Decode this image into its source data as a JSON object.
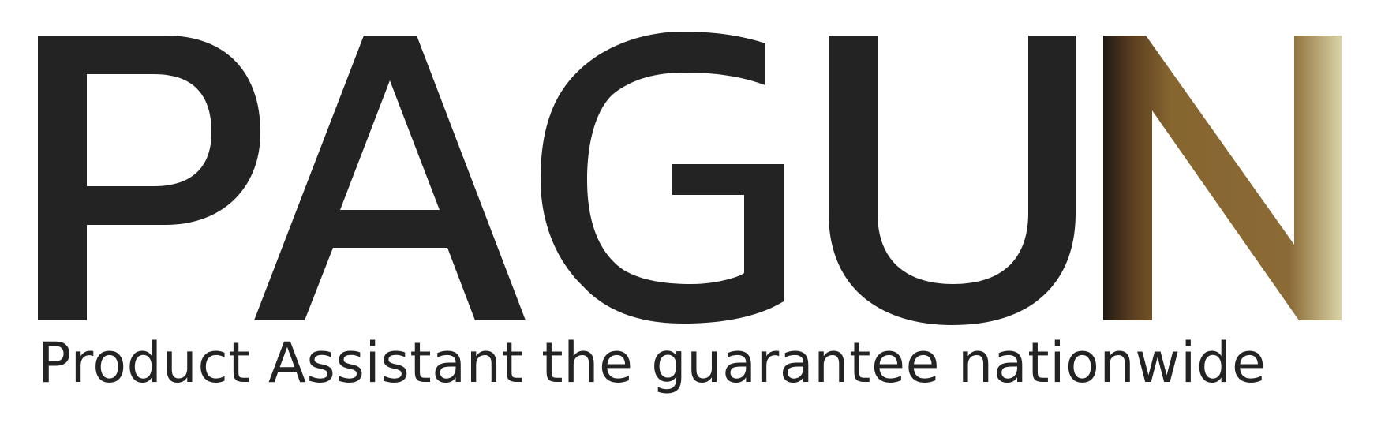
{
  "logo": {
    "wordmark": "PAGUN",
    "tagline": "Product Assistant the guarantee nationwide",
    "colors": {
      "text": "#232323",
      "gradient": [
        "#1f1a15",
        "#5a3e20",
        "#86652f",
        "#8b6a36",
        "#d9d3a7"
      ]
    }
  }
}
